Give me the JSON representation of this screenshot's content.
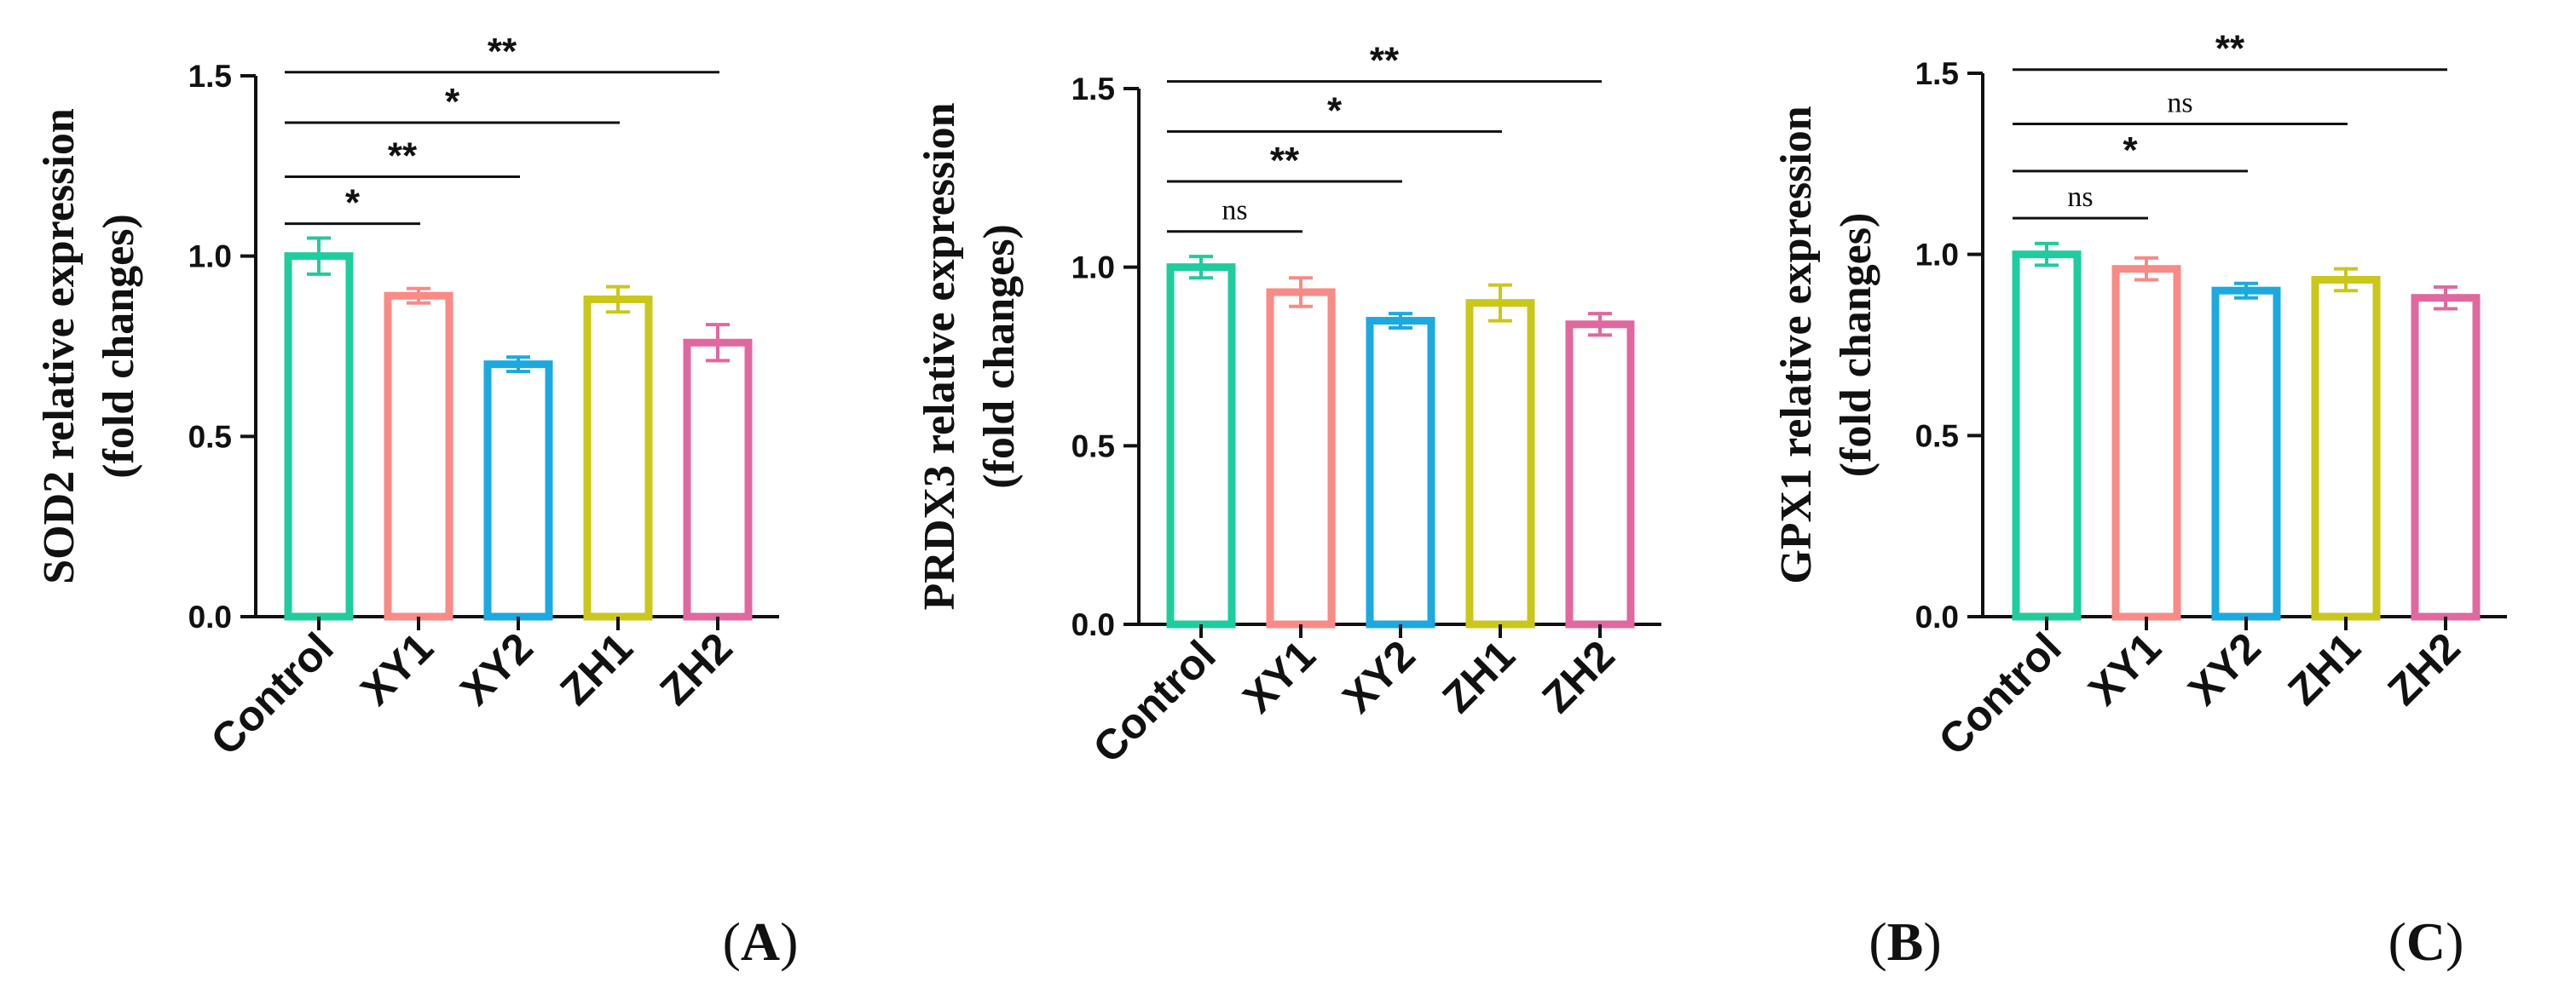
{
  "figure": {
    "panel_labels": [
      {
        "open": "(",
        "letter": "A",
        "close": ")"
      },
      {
        "open": "(",
        "letter": "B",
        "close": ")"
      },
      {
        "open": "(",
        "letter": "C",
        "close": ")"
      }
    ]
  },
  "colors": [
    "#1fcc9e",
    "#f98a86",
    "#1ca9df",
    "#c9c71a",
    "#e0689f"
  ],
  "chart_data": [
    {
      "type": "bar",
      "title": "",
      "ylabel_line1": "SOD2 relative expression",
      "ylabel_line2": "(fold changes)",
      "xlabel": "",
      "categories": [
        "Control",
        "XY1",
        "XY2",
        "ZH1",
        "ZH2"
      ],
      "values": [
        1.0,
        0.89,
        0.7,
        0.88,
        0.76
      ],
      "errors": [
        0.05,
        0.02,
        0.02,
        0.035,
        0.05
      ],
      "ylim": [
        0,
        1.5
      ],
      "yticks": [
        "0.0",
        "0.5",
        "1.0",
        "1.5"
      ],
      "significance": [
        {
          "from": "Control",
          "to": "XY1",
          "label": "*",
          "y": 1.09
        },
        {
          "from": "Control",
          "to": "XY2",
          "label": "**",
          "y": 1.22
        },
        {
          "from": "Control",
          "to": "ZH1",
          "label": "*",
          "y": 1.37
        },
        {
          "from": "Control",
          "to": "ZH2",
          "label": "**",
          "y": 1.51
        }
      ]
    },
    {
      "type": "bar",
      "title": "",
      "ylabel_line1": "PRDX3 relative expression",
      "ylabel_line2": "(fold changes)",
      "xlabel": "",
      "categories": [
        "Control",
        "XY1",
        "XY2",
        "ZH1",
        "ZH2"
      ],
      "values": [
        1.0,
        0.93,
        0.85,
        0.9,
        0.84
      ],
      "errors": [
        0.03,
        0.04,
        0.02,
        0.05,
        0.03
      ],
      "ylim": [
        0,
        1.5
      ],
      "yticks": [
        "0.0",
        "0.5",
        "1.0",
        "1.5"
      ],
      "significance": [
        {
          "from": "Control",
          "to": "XY1",
          "label": "ns",
          "y": 1.1
        },
        {
          "from": "Control",
          "to": "XY2",
          "label": "**",
          "y": 1.24
        },
        {
          "from": "Control",
          "to": "ZH1",
          "label": "*",
          "y": 1.38
        },
        {
          "from": "Control",
          "to": "ZH2",
          "label": "**",
          "y": 1.52
        }
      ]
    },
    {
      "type": "bar",
      "title": "",
      "ylabel_line1": "GPX1 relative expression",
      "ylabel_line2": "(fold changes)",
      "xlabel": "",
      "categories": [
        "Control",
        "XY1",
        "XY2",
        "ZH1",
        "ZH2"
      ],
      "values": [
        1.0,
        0.96,
        0.9,
        0.93,
        0.88
      ],
      "errors": [
        0.03,
        0.03,
        0.02,
        0.03,
        0.03
      ],
      "ylim": [
        0,
        1.5
      ],
      "yticks": [
        "0.0",
        "0.5",
        "1.0",
        "1.5"
      ],
      "significance": [
        {
          "from": "Control",
          "to": "XY1",
          "label": "ns",
          "y": 1.1
        },
        {
          "from": "Control",
          "to": "XY2",
          "label": "*",
          "y": 1.23
        },
        {
          "from": "Control",
          "to": "ZH1",
          "label": "ns",
          "y": 1.36
        },
        {
          "from": "Control",
          "to": "ZH2",
          "label": "**",
          "y": 1.51
        }
      ]
    }
  ]
}
